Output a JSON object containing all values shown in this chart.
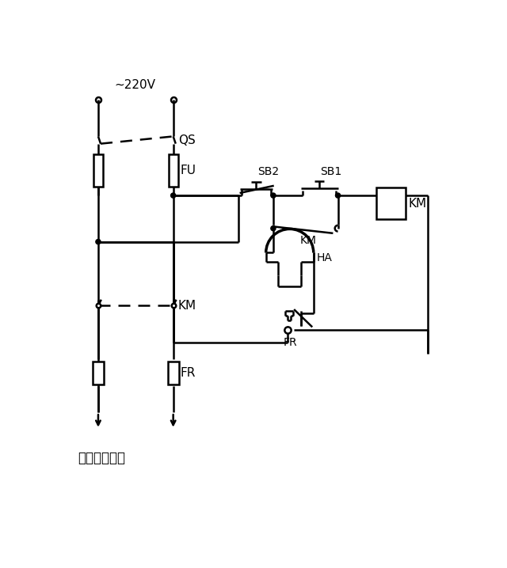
{
  "bg_color": "#ffffff",
  "label_220v": "~220V",
  "label_QS": "QS",
  "label_FU": "FU",
  "label_SB2": "SB2",
  "label_SB1": "SB1",
  "label_KM_coil": "KM",
  "label_KM_aux": "KM",
  "label_KM_main": "KM",
  "label_HA": "HA",
  "label_FR_ctrl": "FR",
  "label_FR_pwr": "FR",
  "label_bottom": "接进户电源线",
  "figsize": [
    6.4,
    7.18
  ],
  "dpi": 100
}
